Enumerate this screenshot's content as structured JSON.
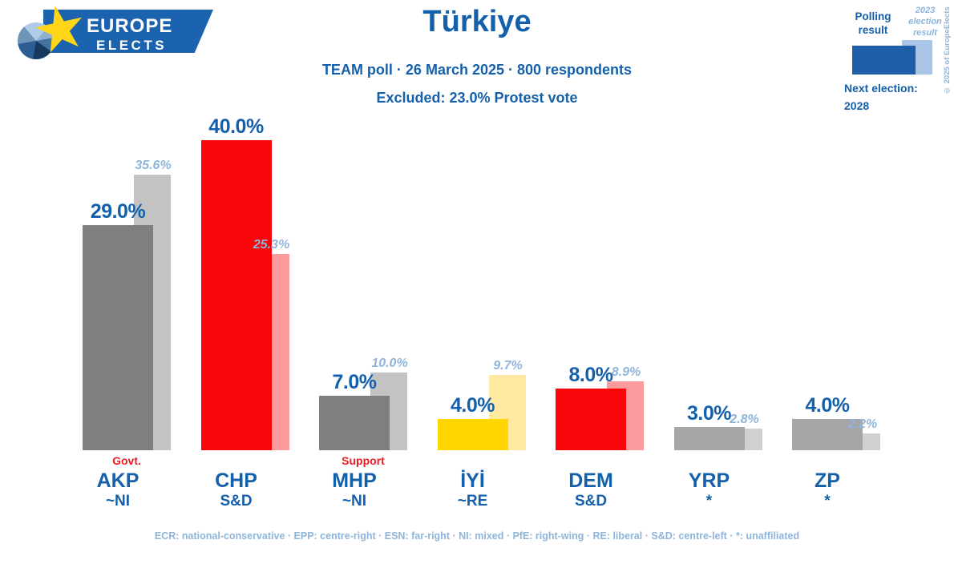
{
  "logo": {
    "line1": "EUROPE",
    "line2": "ELECTS"
  },
  "header": {
    "title": "Türkiye",
    "subtitle": "TEAM poll · 26 March 2025 · 800 respondents",
    "excluded": "Excluded: 23.0% Protest vote"
  },
  "legend": {
    "polling_label": "Polling result",
    "election_label": "2023 election result",
    "next_election_label": "Next election:",
    "next_election_year": "2028",
    "copyright": "© 2025 of EuropeElects",
    "polling_color": "#1f5fa9",
    "election_color": "#a9c5e5"
  },
  "chart_data": {
    "type": "bar",
    "title": "Türkiye",
    "categories": [
      "AKP",
      "CHP",
      "MHP",
      "İYİ",
      "DEM",
      "YRP",
      "ZP"
    ],
    "affiliations": [
      "~NI",
      "S&D",
      "~NI",
      "~RE",
      "S&D",
      "*",
      "*"
    ],
    "series": [
      {
        "name": "Polling result",
        "values": [
          29.0,
          40.0,
          7.0,
          4.0,
          8.0,
          3.0,
          4.0
        ]
      },
      {
        "name": "2023 election result",
        "values": [
          35.6,
          25.3,
          10.0,
          9.7,
          8.9,
          2.8,
          2.2
        ]
      }
    ],
    "value_label_suffix": "%",
    "colors": {
      "polling": [
        "#7f7f7f",
        "#fa0509",
        "#7f7f7f",
        "#ffd500",
        "#fa0509",
        "#a6a6a6",
        "#a6a6a6"
      ],
      "election": [
        "#c3c3c3",
        "#fc9b9d",
        "#c3c3c3",
        "#ffe9a0",
        "#fc9b9d",
        "#d0d0d0",
        "#d0d0d0"
      ]
    },
    "annotations": [
      {
        "index": 0,
        "text": "Govt."
      },
      {
        "index": 2,
        "text": "Support"
      }
    ],
    "ylim": [
      0,
      42
    ],
    "grid": false,
    "legend_position": "top-right"
  },
  "footer": {
    "affiliation_key": "ECR: national-conservative · EPP: centre-right · ESN: far-right · NI: mixed · PfE: right-wing · RE: liberal · S&D: centre-left · *: unaffiliated"
  }
}
